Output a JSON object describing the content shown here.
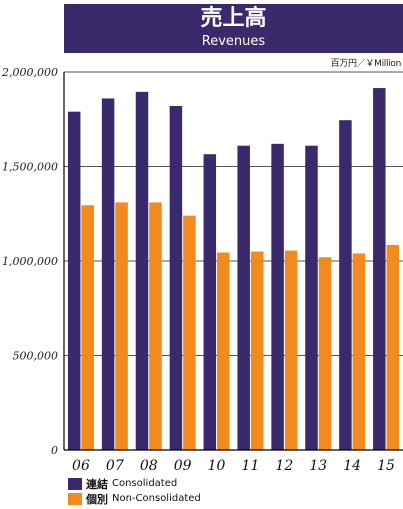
{
  "header": {
    "title_ja": "売上高",
    "title_en": "Revenues",
    "unit": "百万円／￥Million"
  },
  "colors": {
    "consolidated": "#3a2a6b",
    "non_consolidated": "#f28a1e",
    "title_band": "#3a2a6b"
  },
  "chart_data": {
    "type": "bar",
    "categories": [
      "06",
      "07",
      "08",
      "09",
      "10",
      "11",
      "12",
      "13",
      "14",
      "15"
    ],
    "series": [
      {
        "name_ja": "連結",
        "name": "Consolidated",
        "values": [
          1790000,
          1860000,
          1895000,
          1820000,
          1565000,
          1610000,
          1620000,
          1610000,
          1745000,
          1915000
        ]
      },
      {
        "name_ja": "個別",
        "name": "Non-Consolidated",
        "values": [
          1295000,
          1310000,
          1310000,
          1240000,
          1045000,
          1050000,
          1055000,
          1020000,
          1040000,
          1085000
        ]
      }
    ],
    "yticks": [
      0,
      500000,
      1000000,
      1500000,
      2000000
    ],
    "ytick_labels": [
      "0",
      "500,000",
      "1,000,000",
      "1,500,000",
      "2,000,000"
    ],
    "ylim": [
      0,
      2000000
    ],
    "grid": true,
    "legend": "bottom-left"
  }
}
